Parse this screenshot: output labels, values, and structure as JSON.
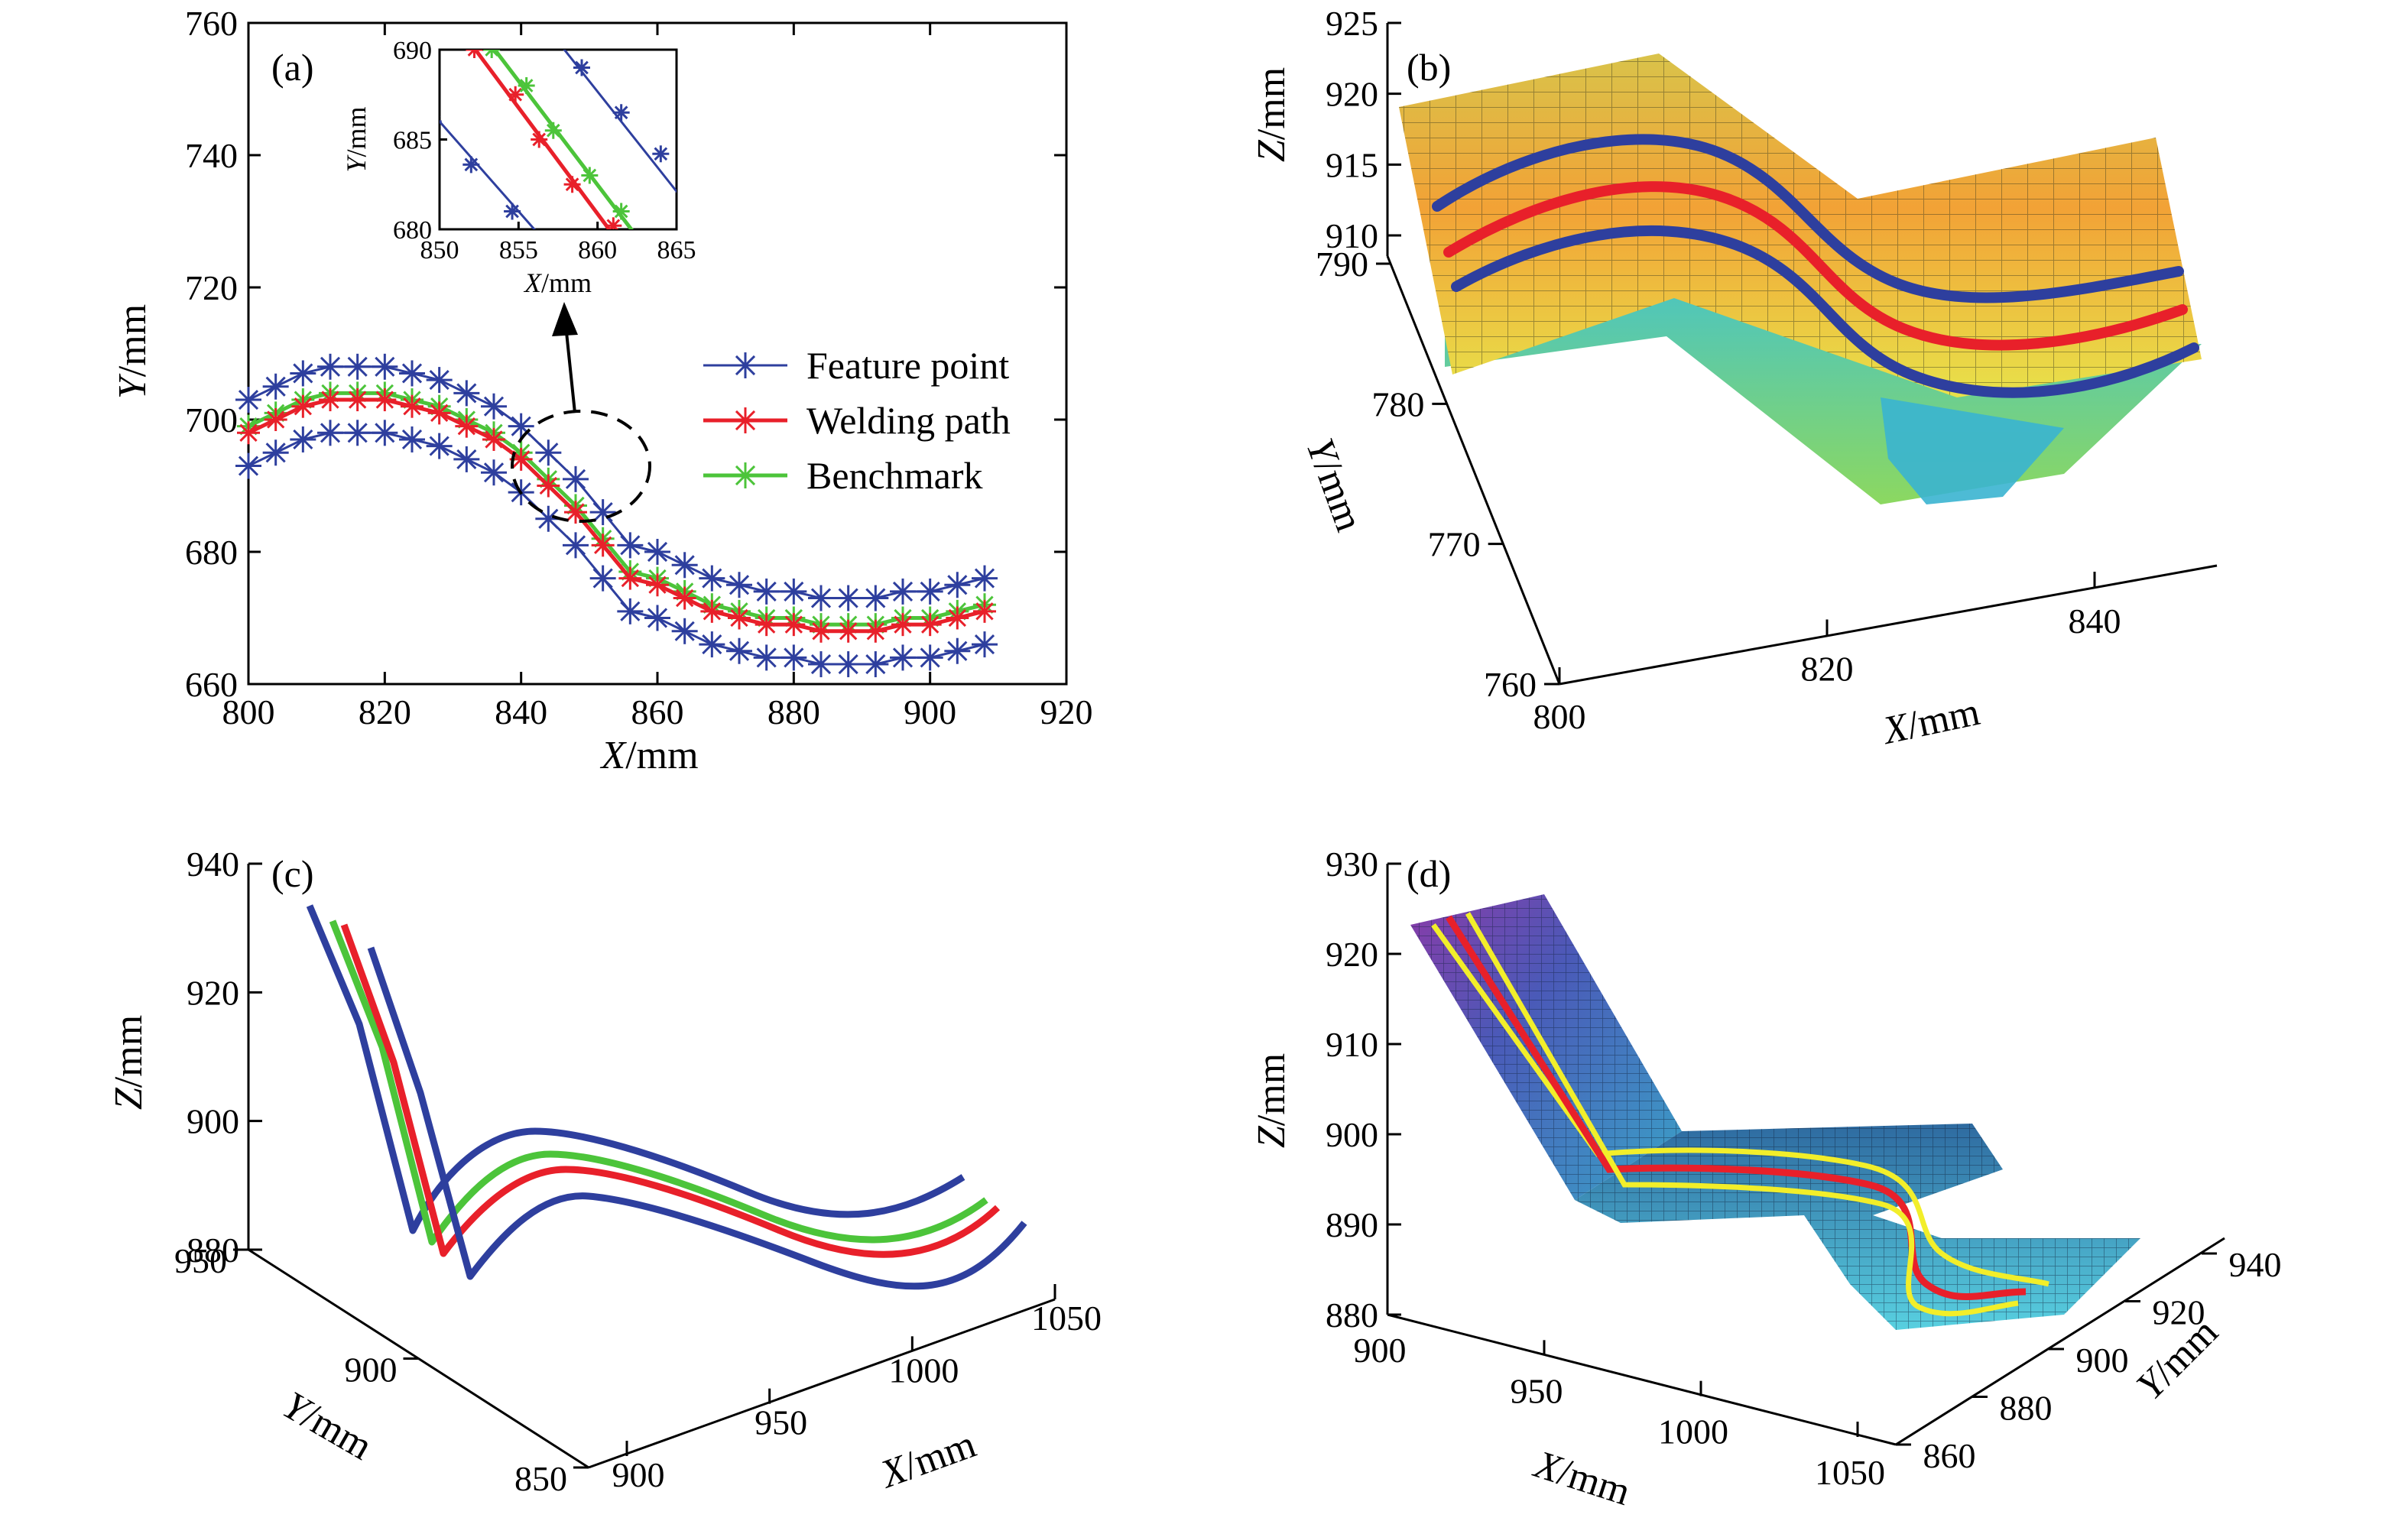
{
  "colors": {
    "feature": "#2e3f9e",
    "welding": "#e8202a",
    "benchmark": "#4cc43a",
    "yellow": "#f2ee2a"
  },
  "chart_data": [
    {
      "panel": "(a)",
      "type": "line",
      "xlabel_italic": "X",
      "xlabel_unit": "/mm",
      "ylabel_italic": "Y",
      "ylabel_unit": "/mm",
      "xlim": [
        800,
        920
      ],
      "ylim": [
        660,
        760
      ],
      "xticks": [
        800,
        820,
        840,
        860,
        880,
        900,
        920
      ],
      "yticks": [
        660,
        680,
        700,
        720,
        740,
        760
      ],
      "legend_position": "right",
      "x": [
        800,
        804,
        808,
        812,
        816,
        820,
        824,
        828,
        832,
        836,
        840,
        844,
        848,
        852,
        856,
        860,
        864,
        868,
        872,
        876,
        880,
        884,
        888,
        892,
        896,
        900,
        904,
        908
      ],
      "series": [
        {
          "name": "Feature point",
          "color": "#2e3f9e",
          "marker": "asterisk",
          "values": [
            703,
            705,
            707,
            708,
            708,
            708,
            707,
            706,
            704,
            702,
            699,
            695,
            690,
            685,
            680,
            686,
            682,
            679,
            677,
            675,
            674,
            674,
            673,
            673,
            674,
            674,
            675,
            676
          ]
        },
        {
          "name": "Welding path",
          "color": "#e8202a",
          "marker": "asterisk",
          "values": [
            698,
            700,
            702,
            703,
            703,
            703,
            702,
            701,
            699,
            697,
            694,
            690,
            686,
            681,
            676,
            675,
            673,
            671,
            670,
            669,
            669,
            668,
            668,
            668,
            669,
            669,
            670,
            671
          ]
        },
        {
          "name": "Benchmark",
          "color": "#4cc43a",
          "marker": "asterisk",
          "values": [
            699,
            701,
            703,
            704,
            704,
            704,
            703,
            702,
            700,
            698,
            695,
            691,
            687,
            682,
            677,
            676,
            674,
            672,
            671,
            670,
            670,
            669,
            669,
            669,
            670,
            670,
            671,
            672
          ]
        }
      ],
      "inset": {
        "xlabel_italic": "X",
        "xlabel_unit": "/mm",
        "ylabel_italic": "Y",
        "ylabel_unit": "/mm",
        "xlim": [
          850,
          865
        ],
        "ylim": [
          680,
          690
        ],
        "xticks": [
          850,
          855,
          860,
          865
        ],
        "yticks": [
          680,
          685,
          690
        ]
      }
    },
    {
      "panel": "(b)",
      "type": "surface3d",
      "xlabel_italic": "X",
      "xlabel_unit": "/mm",
      "ylabel_italic": "Y",
      "ylabel_unit": "/mm",
      "zlabel_italic": "Z",
      "zlabel_unit": "/mm",
      "xticks": [
        800,
        820,
        840
      ],
      "yticks": [
        760,
        770,
        780,
        790
      ],
      "zticks": [
        910,
        915,
        920,
        925
      ]
    },
    {
      "panel": "(c)",
      "type": "line3d",
      "xlabel_italic": "X",
      "xlabel_unit": "/mm",
      "ylabel_italic": "Y",
      "ylabel_unit": "/mm",
      "zlabel_italic": "Z",
      "zlabel_unit": "/mm",
      "xticks": [
        900,
        950,
        1000,
        1050
      ],
      "yticks": [
        850,
        900,
        950
      ],
      "zticks": [
        880,
        900,
        920,
        940
      ]
    },
    {
      "panel": "(d)",
      "type": "surface3d",
      "xlabel_italic": "X",
      "xlabel_unit": "/mm",
      "ylabel_italic": "Y",
      "ylabel_unit": "/mm",
      "zlabel_italic": "Z",
      "zlabel_unit": "/mm",
      "xticks": [
        900,
        950,
        1000,
        1050
      ],
      "yticks": [
        860,
        880,
        900,
        920,
        940
      ],
      "zticks": [
        880,
        890,
        900,
        910,
        920,
        930
      ]
    }
  ]
}
